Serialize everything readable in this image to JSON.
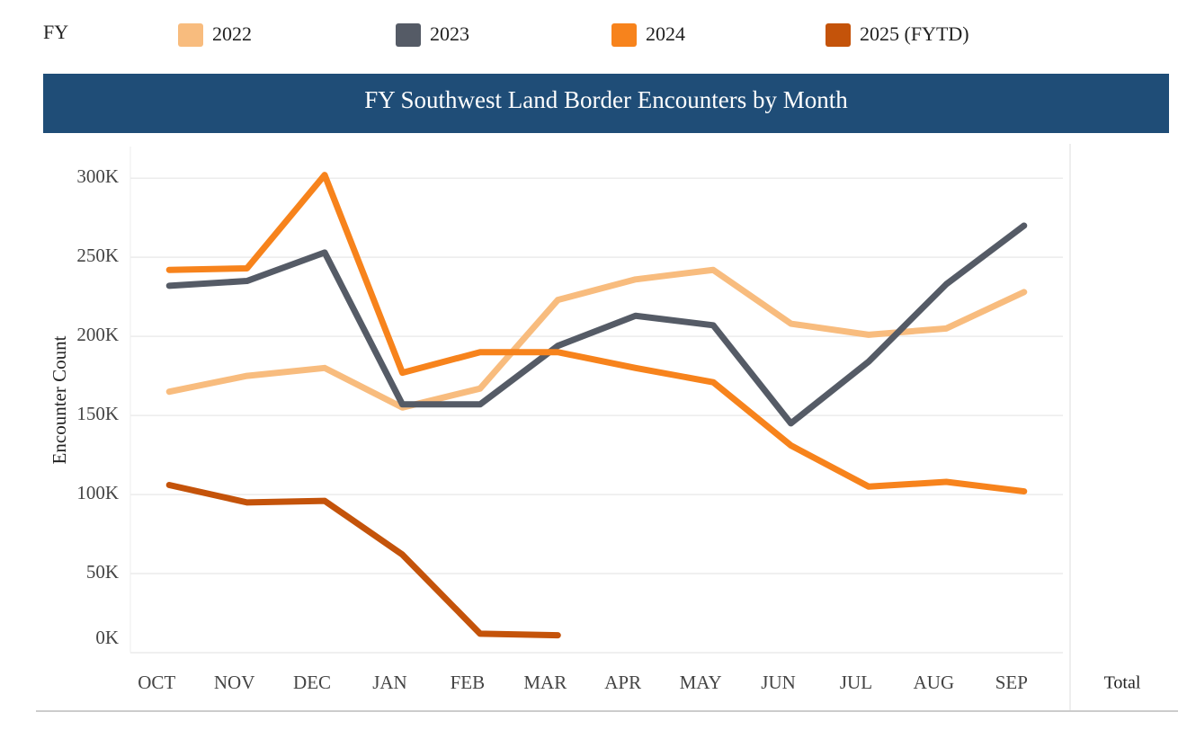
{
  "chart_data": {
    "type": "line",
    "title": "FY Southwest Land Border Encounters by Month",
    "legend_title": "FY",
    "ylabel": "Encounter Count",
    "total_label": "Total",
    "categories": [
      "OCT",
      "NOV",
      "DEC",
      "JAN",
      "FEB",
      "MAR",
      "APR",
      "MAY",
      "JUN",
      "JUL",
      "AUG",
      "SEP"
    ],
    "series": [
      {
        "name": "2022",
        "color": "#f8bc7e",
        "values": [
          165000,
          175000,
          180000,
          155000,
          167000,
          223000,
          236000,
          242000,
          208000,
          201000,
          205000,
          228000
        ]
      },
      {
        "name": "2023",
        "color": "#555b66",
        "values": [
          232000,
          235000,
          253000,
          157000,
          157000,
          194000,
          213000,
          207000,
          145000,
          184000,
          233000,
          270000
        ]
      },
      {
        "name": "2024",
        "color": "#f7831c",
        "values": [
          242000,
          243000,
          302000,
          177000,
          190000,
          190000,
          180000,
          171000,
          131000,
          105000,
          108000,
          102000
        ]
      },
      {
        "name": "2025 (FYTD)",
        "color": "#c4530a",
        "values": [
          106000,
          95000,
          96000,
          62000,
          12000,
          11000,
          null,
          null,
          null,
          null,
          null,
          null
        ]
      }
    ],
    "ylim": [
      0,
      320000
    ],
    "yticks": [
      {
        "value": 0,
        "label": "0K"
      },
      {
        "value": 50000,
        "label": "50K"
      },
      {
        "value": 100000,
        "label": "100K"
      },
      {
        "value": 150000,
        "label": "150K"
      },
      {
        "value": 200000,
        "label": "200K"
      },
      {
        "value": 250000,
        "label": "250K"
      },
      {
        "value": 300000,
        "label": "300K"
      }
    ],
    "grid": true
  }
}
